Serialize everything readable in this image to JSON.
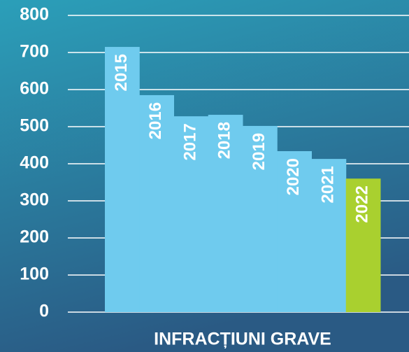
{
  "chart_data": {
    "type": "bar",
    "x_label": "INFRACȚIUNI GRAVE",
    "categories": [
      "2015",
      "2016",
      "2017",
      "2018",
      "2019",
      "2020",
      "2021",
      "2022"
    ],
    "values": [
      715,
      585,
      528,
      532,
      502,
      434,
      413,
      360
    ],
    "colors": [
      "#6fcbee",
      "#6fcbee",
      "#6fcbee",
      "#6fcbee",
      "#6fcbee",
      "#6fcbee",
      "#6fcbee",
      "#a9d02f"
    ],
    "ylim": [
      0,
      800
    ],
    "yticks": [
      0,
      100,
      200,
      300,
      400,
      500,
      600,
      700,
      800
    ],
    "grid": true
  }
}
